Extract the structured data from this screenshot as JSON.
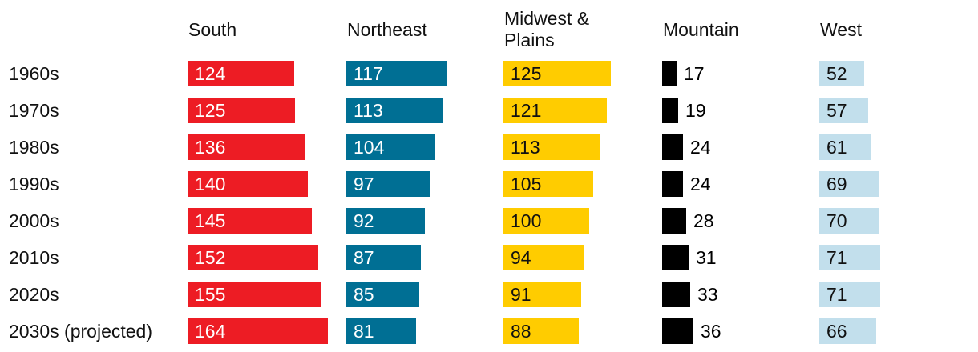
{
  "chart_data": {
    "type": "bar",
    "categories": [
      "1960s",
      "1970s",
      "1980s",
      "1990s",
      "2000s",
      "2010s",
      "2020s",
      "2030s (projected)"
    ],
    "series": [
      {
        "name": "South",
        "color": "#ed1c24",
        "label_inside": true,
        "label_color": "#ffffff",
        "values": [
          124,
          125,
          136,
          140,
          145,
          152,
          155,
          164
        ]
      },
      {
        "name": "Northeast",
        "color": "#006f94",
        "label_inside": true,
        "label_color": "#ffffff",
        "values": [
          117,
          113,
          104,
          97,
          92,
          87,
          85,
          81
        ]
      },
      {
        "name": "Midwest & Plains",
        "color": "#ffcc00",
        "label_inside": true,
        "label_color": "#111111",
        "values": [
          125,
          121,
          113,
          105,
          100,
          94,
          91,
          88
        ]
      },
      {
        "name": "Mountain",
        "color": "#000000",
        "label_inside": false,
        "label_color": "#000000",
        "values": [
          17,
          19,
          24,
          24,
          28,
          31,
          33,
          36
        ]
      },
      {
        "name": "West",
        "color": "#c2dfec",
        "label_inside": true,
        "label_color": "#111111",
        "values": [
          52,
          57,
          61,
          69,
          70,
          71,
          71,
          66
        ]
      }
    ]
  }
}
